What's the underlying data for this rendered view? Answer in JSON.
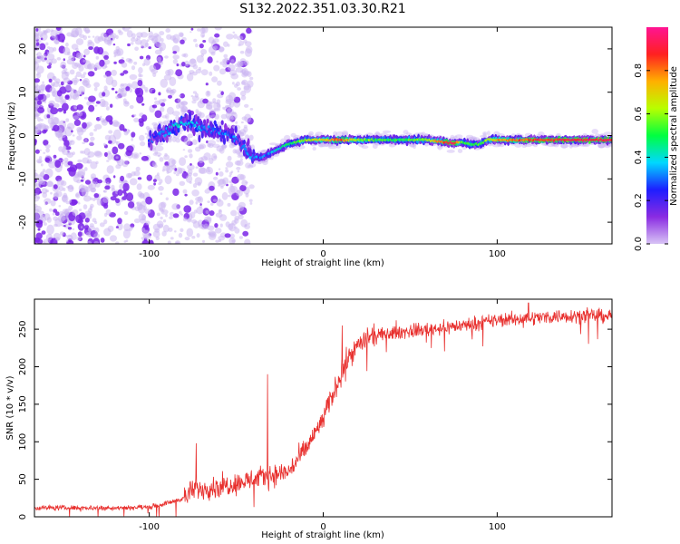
{
  "figure_title": "S132.2022.351.03.30.R21",
  "colors": {
    "signal_line": "#e8302e",
    "scatter_light": "#c9b3f2",
    "scatter_dark": "#7a25e8",
    "colorbar_stops": [
      "#d8c4f5",
      "#8a2be2",
      "#1e1eff",
      "#00d8ff",
      "#00ff40",
      "#b8ff00",
      "#ffb000",
      "#ff2020",
      "#ff1493"
    ]
  },
  "chart_data": [
    {
      "type": "heatmap",
      "description": "spectrogram: frequency vs height of straight line",
      "xlabel": "Height of straight line (km)",
      "ylabel": "Frequency (Hz)",
      "xlim": [
        -166,
        166
      ],
      "ylim": [
        -25,
        25
      ],
      "xticks": [
        -100,
        0,
        100
      ],
      "yticks": [
        -20,
        -10,
        0,
        10,
        20
      ],
      "grid": false,
      "colorbar": {
        "label": "Normalized spectral amplitude",
        "range": [
          0.0,
          1.0
        ],
        "ticks": [
          0.0,
          0.2,
          0.4,
          0.6,
          0.8
        ]
      },
      "ridge": {
        "x": [
          -100,
          -90,
          -80,
          -70,
          -60,
          -52,
          -45,
          -40,
          -35,
          -30,
          -25,
          -20,
          -15,
          -10,
          0,
          10,
          20,
          40,
          60,
          70,
          75,
          80,
          85,
          90,
          95,
          100,
          120,
          140,
          166
        ],
        "freq": [
          -1,
          1,
          3,
          2,
          1,
          0,
          -3,
          -5,
          -5,
          -4,
          -3,
          -2,
          -1.5,
          -1,
          -1,
          -1,
          -1,
          -1,
          -1,
          -1.5,
          -1.8,
          -1.5,
          -2,
          -2,
          -1,
          -1,
          -1,
          -1,
          -1
        ],
        "amplitude": [
          0.25,
          0.35,
          0.4,
          0.35,
          0.3,
          0.3,
          0.3,
          0.35,
          0.3,
          0.35,
          0.4,
          0.5,
          0.55,
          0.6,
          0.7,
          0.85,
          0.6,
          0.5,
          0.6,
          0.85,
          0.95,
          0.55,
          0.5,
          0.55,
          0.6,
          0.75,
          0.85,
          0.9,
          0.9
        ]
      }
    },
    {
      "type": "line",
      "xlabel": "Height of straight line (km)",
      "ylabel": "SNR (10 * v/v)",
      "xlim": [
        -166,
        166
      ],
      "ylim": [
        0,
        290
      ],
      "xticks": [
        -100,
        0,
        100
      ],
      "yticks": [
        0,
        50,
        100,
        150,
        200,
        250
      ],
      "grid": false,
      "series": [
        {
          "x": [
            -166,
            -140,
            -120,
            -100,
            -90,
            -80,
            -75,
            -70,
            -60,
            -50,
            -40,
            -30,
            -20,
            -10,
            0,
            5,
            10,
            15,
            20,
            25,
            40,
            60,
            80,
            100,
            120,
            140,
            166
          ],
          "values": [
            12,
            12,
            12,
            13,
            18,
            25,
            35,
            38,
            40,
            45,
            50,
            55,
            60,
            90,
            130,
            160,
            190,
            215,
            228,
            238,
            245,
            250,
            255,
            262,
            265,
            268,
            268
          ],
          "spikes": [
            {
              "x": -73,
              "y": 98
            },
            {
              "x": -32,
              "y": 190
            },
            {
              "x": 11,
              "y": 255
            },
            {
              "x": 42,
              "y": 262
            },
            {
              "x": 118,
              "y": 285
            }
          ]
        }
      ]
    }
  ]
}
